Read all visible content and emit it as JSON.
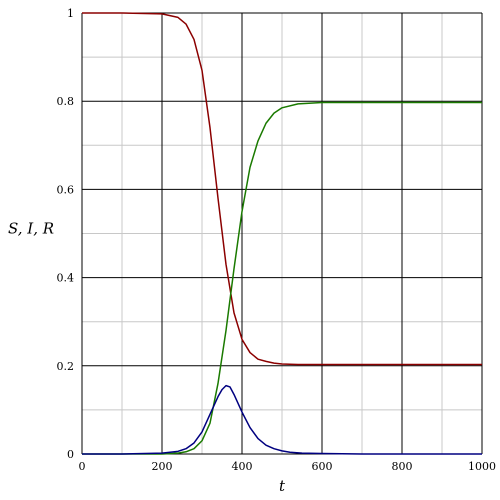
{
  "chart_data": {
    "type": "line",
    "title": "",
    "xlabel": "t",
    "ylabel": "S, I, R",
    "xlim": [
      0,
      1000
    ],
    "ylim": [
      0,
      1
    ],
    "grid": true,
    "x_ticks": [
      0,
      200,
      400,
      600,
      800,
      1000
    ],
    "y_ticks": [
      0,
      0.2,
      0.4,
      0.6,
      0.8,
      1
    ],
    "x_tick_labels": [
      "0",
      "200",
      "400",
      "600",
      "800",
      "1000"
    ],
    "y_tick_labels": [
      "0",
      "0.2",
      "0.4",
      "0.6",
      "0.8",
      "1"
    ],
    "series": [
      {
        "color": "#8b0000",
        "x": [
          0,
          100,
          200,
          240,
          260,
          280,
          300,
          320,
          340,
          360,
          380,
          400,
          420,
          440,
          460,
          480,
          500,
          540,
          600,
          700,
          800,
          900,
          1000
        ],
        "y": [
          1,
          1,
          0.998,
          0.99,
          0.975,
          0.94,
          0.87,
          0.74,
          0.58,
          0.43,
          0.32,
          0.26,
          0.23,
          0.215,
          0.21,
          0.206,
          0.204,
          0.203,
          0.203,
          0.203,
          0.203,
          0.203,
          0.203
        ]
      },
      {
        "color": "#1a7a00",
        "x": [
          0,
          100,
          200,
          240,
          260,
          280,
          300,
          320,
          340,
          360,
          380,
          400,
          420,
          440,
          460,
          480,
          500,
          540,
          600,
          700,
          800,
          900,
          1000
        ],
        "y": [
          0,
          0,
          0,
          0.002,
          0.005,
          0.012,
          0.03,
          0.07,
          0.16,
          0.28,
          0.42,
          0.55,
          0.65,
          0.71,
          0.75,
          0.773,
          0.785,
          0.794,
          0.797,
          0.797,
          0.797,
          0.797,
          0.797
        ]
      },
      {
        "color": "#000080",
        "x": [
          0,
          100,
          200,
          240,
          260,
          280,
          300,
          320,
          340,
          350,
          360,
          370,
          380,
          400,
          420,
          440,
          460,
          480,
          500,
          520,
          550,
          600,
          700,
          800,
          900,
          1000
        ],
        "y": [
          0,
          0,
          0.002,
          0.006,
          0.012,
          0.025,
          0.05,
          0.09,
          0.13,
          0.146,
          0.155,
          0.152,
          0.135,
          0.095,
          0.06,
          0.035,
          0.02,
          0.012,
          0.007,
          0.004,
          0.002,
          0.001,
          0,
          0,
          0,
          0
        ]
      }
    ]
  }
}
